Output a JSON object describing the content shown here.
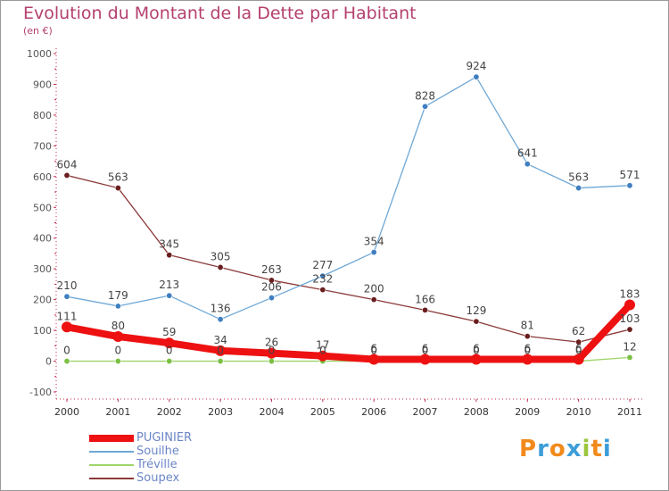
{
  "title": "Evolution du Montant de la Dette par Habitant",
  "subtitle": "(en €)",
  "brand": {
    "letters": [
      "P",
      "r",
      "o",
      "x",
      "i",
      "t",
      "i"
    ],
    "colors": [
      "#f28a1b",
      "#3d9ed8",
      "#f28a1b",
      "#3d9ed8",
      "#9bc53d",
      "#f28a1b",
      "#3d9ed8"
    ]
  },
  "chart_data": {
    "type": "line",
    "x": [
      "2000",
      "2001",
      "2002",
      "2003",
      "2004",
      "2005",
      "2006",
      "2007",
      "2008",
      "2009",
      "2010",
      "2011"
    ],
    "ylim": [
      -100,
      1000
    ],
    "yticks": [
      "-100",
      "0",
      "100",
      "200",
      "300",
      "400",
      "500",
      "600",
      "700",
      "800",
      "900",
      "1000"
    ],
    "grid": false,
    "legend_position": "bottom-left",
    "series": [
      {
        "name": "Soupex",
        "color": "#8c3a3a",
        "marker": "#6a1e1e",
        "width": 1.3,
        "values": [
          604,
          563,
          345,
          305,
          263,
          232,
          200,
          166,
          129,
          81,
          62,
          103
        ],
        "labels": [
          "604",
          "563",
          "345",
          "305",
          "263",
          "232",
          "200",
          "166",
          "129",
          "81",
          "62",
          "103"
        ]
      },
      {
        "name": "Souilhe",
        "color": "#6fa8d6",
        "marker": "#3f7fc1",
        "width": 1.3,
        "values": [
          210,
          179,
          213,
          136,
          206,
          277,
          354,
          828,
          924,
          641,
          563,
          571
        ],
        "labels": [
          "210",
          "179",
          "213",
          "136",
          "206",
          "277",
          "354",
          "828",
          "924",
          "641",
          "563",
          "571"
        ]
      },
      {
        "name": "Tréville",
        "color": "#9ed46a",
        "marker": "#7bc043",
        "width": 1.3,
        "values": [
          0,
          0,
          0,
          0,
          0,
          0,
          0,
          0,
          0,
          0,
          0,
          12
        ],
        "labels": [
          "0",
          "0",
          "0",
          "0",
          "0",
          "0",
          "0",
          "0",
          "0",
          "0",
          "0",
          "12"
        ]
      },
      {
        "name": "PUGINIER",
        "color": "#ee1111",
        "marker": "#ee1111",
        "width": 8,
        "values": [
          111,
          80,
          59,
          34,
          26,
          17,
          6,
          6,
          6,
          6,
          6,
          183
        ],
        "labels": [
          "111",
          "80",
          "59",
          "34",
          "26",
          "17",
          "6",
          "6",
          "6",
          "6",
          "6",
          "183"
        ]
      }
    ],
    "legend_order": [
      "PUGINIER",
      "Souilhe",
      "Tréville",
      "Soupex"
    ]
  }
}
